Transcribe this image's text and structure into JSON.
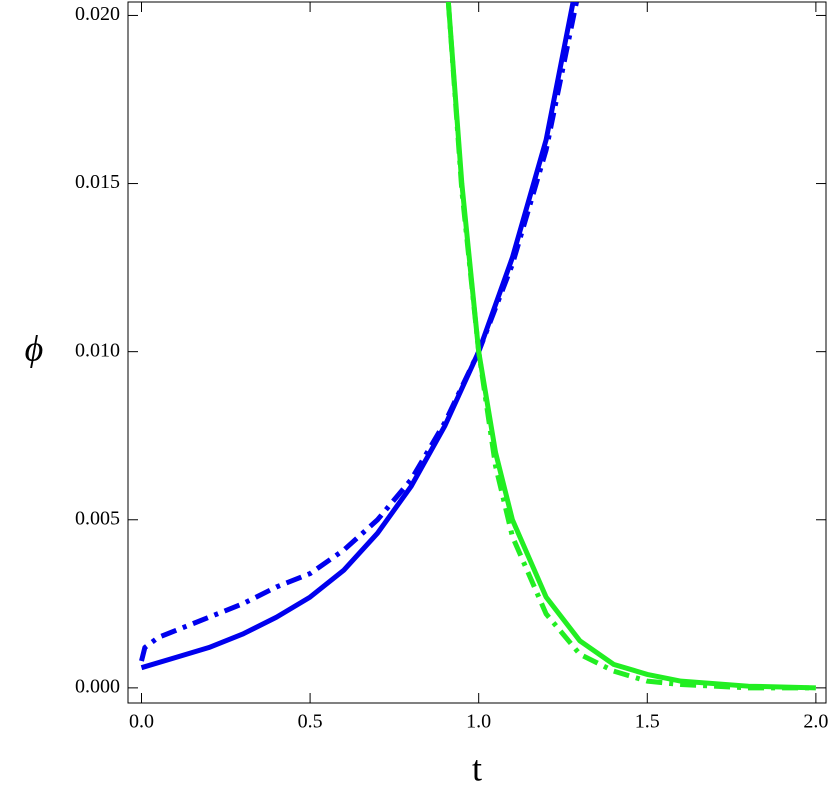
{
  "chart_data": {
    "type": "line",
    "x_label": "t",
    "y_label": "ϕ",
    "xlim": [
      -0.04,
      2.03
    ],
    "ylim": [
      -0.00045,
      0.0204
    ],
    "xticks": [
      {
        "value": 0,
        "label": "0.0"
      },
      0.5,
      {
        "value": 1,
        "label": "1.0"
      },
      1.5,
      {
        "value": 2,
        "label": "2.0"
      }
    ],
    "yticks": [
      {
        "value": 0,
        "label": "0.000"
      },
      0.005,
      {
        "value": 0.01,
        "label": "0.010"
      },
      0.015,
      {
        "value": 0.02,
        "label": "0.020"
      }
    ],
    "series": [
      {
        "color": "#0000ee",
        "dash": "solid",
        "x": [
          0,
          0.1,
          0.2,
          0.3,
          0.4,
          0.5,
          0.6,
          0.7,
          0.8,
          0.9,
          1.0,
          1.1,
          1.2,
          1.28
        ],
        "values": [
          0.0006,
          0.0009,
          0.0012,
          0.0016,
          0.0021,
          0.0027,
          0.0035,
          0.0046,
          0.006,
          0.0078,
          0.01,
          0.0128,
          0.0163,
          0.0204
        ]
      },
      {
        "color": "#0000ee",
        "dash": "dashdot",
        "x": [
          0,
          0.01,
          0.05,
          0.1,
          0.2,
          0.3,
          0.4,
          0.5,
          0.6,
          0.7,
          0.8,
          0.9,
          1.0,
          1.1,
          1.2,
          1.29
        ],
        "values": [
          0.0008,
          0.0012,
          0.0015,
          0.0017,
          0.0021,
          0.0025,
          0.003,
          0.0034,
          0.0041,
          0.005,
          0.0062,
          0.0079,
          0.01,
          0.0126,
          0.016,
          0.0204
        ]
      },
      {
        "color": "#22ee22",
        "dash": "solid",
        "x": [
          0.91,
          0.95,
          1.0,
          1.05,
          1.1,
          1.2,
          1.3,
          1.4,
          1.5,
          1.6,
          1.8,
          2.0
        ],
        "values": [
          0.0204,
          0.015,
          0.01,
          0.007,
          0.005,
          0.0027,
          0.0014,
          0.0007,
          0.0004,
          0.0002,
          5e-05,
          0
        ]
      },
      {
        "color": "#22ee22",
        "dash": "dashdot",
        "x": [
          0.91,
          0.95,
          1.0,
          1.05,
          1.1,
          1.2,
          1.3,
          1.4,
          1.5,
          1.6,
          1.8,
          2.0
        ],
        "values": [
          0.0204,
          0.0148,
          0.01,
          0.0066,
          0.0045,
          0.0022,
          0.001,
          0.0005,
          0.0002,
          0.0001,
          0,
          0
        ]
      }
    ]
  }
}
